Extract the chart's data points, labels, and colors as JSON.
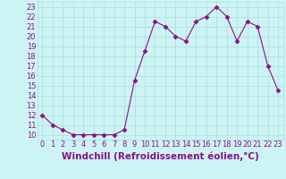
{
  "x": [
    0,
    1,
    2,
    3,
    4,
    5,
    6,
    7,
    8,
    9,
    10,
    11,
    12,
    13,
    14,
    15,
    16,
    17,
    18,
    19,
    20,
    21,
    22,
    23
  ],
  "y": [
    12,
    11,
    10.5,
    10,
    10,
    10,
    10,
    10,
    10.5,
    15.5,
    18.5,
    21.5,
    21,
    20,
    19.5,
    21.5,
    22,
    23,
    22,
    19.5,
    21.5,
    21,
    17,
    14.5
  ],
  "line_color": "#881188",
  "marker": "D",
  "marker_size": 2.5,
  "bg_color": "#cdf4f4",
  "grid_color": "#aadddd",
  "xlabel": "Windchill (Refroidissement éolien,°C)",
  "xlim": [
    -0.5,
    23.5
  ],
  "ylim": [
    9.5,
    23.5
  ],
  "yticks": [
    10,
    11,
    12,
    13,
    14,
    15,
    16,
    17,
    18,
    19,
    20,
    21,
    22,
    23
  ],
  "xticks": [
    0,
    1,
    2,
    3,
    4,
    5,
    6,
    7,
    8,
    9,
    10,
    11,
    12,
    13,
    14,
    15,
    16,
    17,
    18,
    19,
    20,
    21,
    22,
    23
  ],
  "tick_color": "#881188",
  "label_color": "#881188",
  "xlabel_fontsize": 7.5,
  "tick_fontsize": 6.0
}
